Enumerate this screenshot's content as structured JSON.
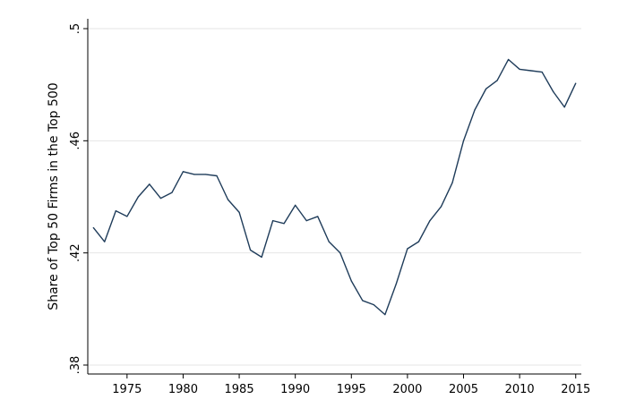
{
  "chart_data": {
    "type": "line",
    "title": "",
    "xlabel": "",
    "ylabel": "Share of Top 50 Firms in the Top 500",
    "xlim": [
      1971.5,
      2015.5
    ],
    "ylim": [
      0.38,
      0.5
    ],
    "x_ticks": [
      1975,
      1980,
      1985,
      1990,
      1995,
      2000,
      2005,
      2010,
      2015
    ],
    "x_tick_labels": [
      "1975",
      "1980",
      "1985",
      "1990",
      "1995",
      "2000",
      "2005",
      "2010",
      "2015"
    ],
    "y_ticks": [
      0.38,
      0.42,
      0.46,
      0.5
    ],
    "y_tick_labels": [
      ".38",
      ".42",
      ".46",
      ".5"
    ],
    "grid": "horizontal",
    "legend": "none",
    "line_color": "#1f3c5a",
    "series": [
      {
        "x": [
          1972,
          1973,
          1974,
          1975,
          1976,
          1977,
          1978,
          1979,
          1980,
          1981,
          1982,
          1983,
          1984,
          1985,
          1986,
          1987,
          1988,
          1989,
          1990,
          1991,
          1992,
          1993,
          1994,
          1995,
          1996,
          1997,
          1998,
          1999,
          2000,
          2001,
          2002,
          2003,
          2004,
          2005,
          2006,
          2007,
          2008,
          2009,
          2010,
          2011,
          2012,
          2013,
          2014,
          2015
        ],
        "values": [
          0.429,
          0.424,
          0.435,
          0.433,
          0.44,
          0.4445,
          0.4395,
          0.4415,
          0.449,
          0.448,
          0.448,
          0.4475,
          0.439,
          0.4345,
          0.421,
          0.4185,
          0.4315,
          0.4305,
          0.437,
          0.4315,
          0.433,
          0.424,
          0.42,
          0.41,
          0.403,
          0.4015,
          0.398,
          0.409,
          0.4215,
          0.424,
          0.4315,
          0.4365,
          0.445,
          0.46,
          0.471,
          0.4785,
          0.4815,
          0.489,
          0.4855,
          0.485,
          0.4845,
          0.4775,
          0.472,
          0.4805
        ]
      }
    ]
  }
}
